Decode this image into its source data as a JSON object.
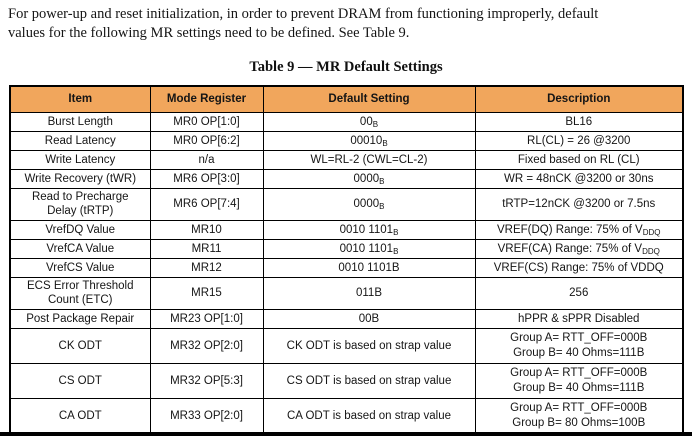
{
  "intro": {
    "text": "For power-up and reset initialization, in order to prevent DRAM from functioning improperly, default\nvalues for the following MR settings need to be defined. See Table 9."
  },
  "table": {
    "title": "Table 9 — MR Default Settings",
    "header_bg": "#f1a65c",
    "headers": [
      "Item",
      "Mode Register",
      "Default Setting",
      "Description"
    ],
    "rows": [
      {
        "cells": [
          "Burst Length",
          "MR0 OP[1:0]",
          "00_{B}",
          "BL16"
        ],
        "size": "single"
      },
      {
        "cells": [
          "Read Latency",
          "MR0 OP[6:2]",
          "00010_{B}",
          "RL(CL) = 26 @3200"
        ],
        "size": "single"
      },
      {
        "cells": [
          "Write Latency",
          "n/a",
          "WL=RL-2 (CWL=CL-2)",
          "Fixed based on RL (CL)"
        ],
        "size": "single"
      },
      {
        "cells": [
          "Write Recovery (tWR)",
          "MR6 OP[3:0]",
          "0000_{B}",
          "WR = 48nCK @3200 or 30ns"
        ],
        "size": "single"
      },
      {
        "cells": [
          "Read to Precharge\nDelay (tRTP)",
          "MR6 OP[7:4]",
          "0000_{B}",
          "tRTP=12nCK @3200 or 7.5ns"
        ],
        "size": "tall"
      },
      {
        "cells": [
          "VrefDQ Value",
          "MR10",
          "0010 1101_{B}",
          "VREF(DQ) Range: 75% of V_{DDQ}"
        ],
        "size": "single"
      },
      {
        "cells": [
          "VrefCA Value",
          "MR11",
          "0010 1101_{B}",
          "VREF(CA) Range: 75% of V_{DDQ}"
        ],
        "size": "single"
      },
      {
        "cells": [
          "VrefCS Value",
          "MR12",
          "0010 1101B",
          "VREF(CS) Range: 75% of VDDQ"
        ],
        "size": "single"
      },
      {
        "cells": [
          "ECS Error Threshold\nCount (ETC)",
          "MR15",
          "011B",
          "256"
        ],
        "size": "tall"
      },
      {
        "cells": [
          "Post Package Repair",
          "MR23 OP[1:0]",
          "00B",
          "hPPR & sPPR Disabled"
        ],
        "size": "single"
      },
      {
        "cells": [
          "CK ODT",
          "MR32 OP[2:0]",
          "CK ODT is based on strap value",
          "Group A= RTT_OFF=000B\nGroup B= 40 Ohms=111B"
        ],
        "size": "odt"
      },
      {
        "cells": [
          "CS ODT",
          "MR32 OP[5:3]",
          "CS ODT is based on strap value",
          "Group A= RTT_OFF=000B\nGroup B= 40 Ohms=111B"
        ],
        "size": "odt"
      },
      {
        "cells": [
          "CA ODT",
          "MR33 OP[2:0]",
          "CA ODT is based on strap value",
          "Group A= RTT_OFF=000B\nGroup B= 80 Ohms=100B"
        ],
        "size": "odt"
      }
    ]
  }
}
